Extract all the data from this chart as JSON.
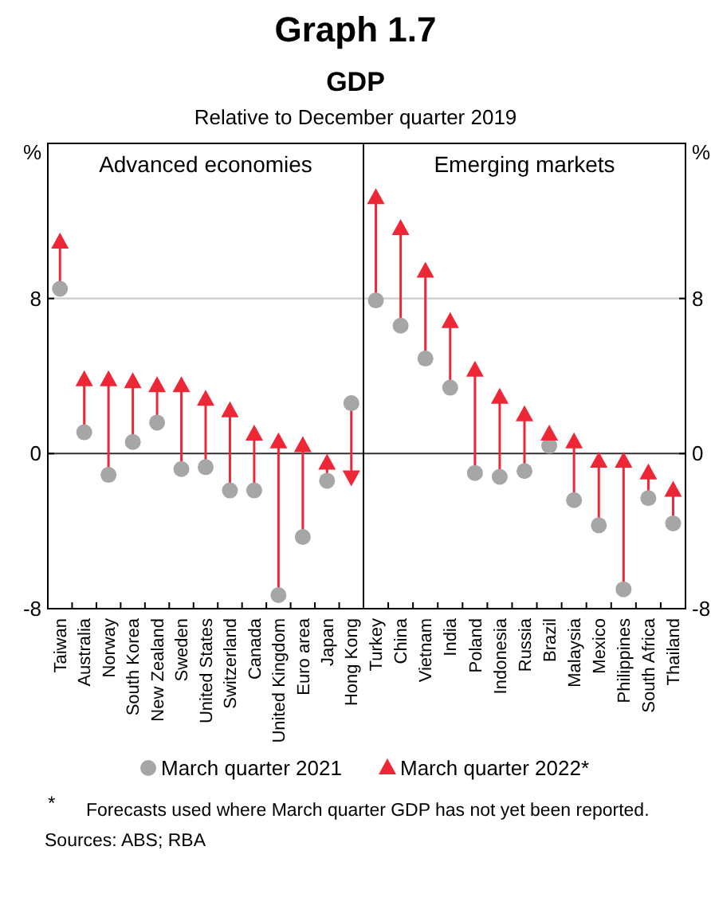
{
  "chart_data": [
    {
      "type": "scatter",
      "title": "Advanced economies",
      "ylabel": "%",
      "categories": [
        "Taiwan",
        "Australia",
        "Norway",
        "South Korea",
        "New Zealand",
        "Sweden",
        "United States",
        "Switzerland",
        "Canada",
        "United Kingdom",
        "Euro area",
        "Japan",
        "Hong Kong"
      ],
      "series": [
        {
          "name": "March quarter 2021",
          "color": "#a6a6a6",
          "marker": "circle",
          "values": [
            8.5,
            1.1,
            -1.1,
            0.6,
            1.6,
            -0.8,
            -0.7,
            -1.9,
            -1.9,
            -7.3,
            -4.3,
            -1.4,
            2.6
          ]
        },
        {
          "name": "March quarter 2022*",
          "color": "#ee2737",
          "marker": "triangle",
          "values": [
            10.9,
            3.8,
            3.8,
            3.7,
            3.5,
            3.5,
            2.8,
            2.2,
            1.0,
            0.6,
            0.4,
            -0.5,
            -1.2
          ]
        }
      ],
      "ylim": [
        -8,
        16
      ],
      "yticks": [
        -8,
        0,
        8
      ],
      "ref_lines": [
        {
          "axis": "y",
          "value": 8,
          "color": "#cccccc"
        }
      ],
      "legend": "bottom",
      "annotations": [
        "Graph 1.7",
        "GDP",
        "Relative to December quarter 2019",
        "*",
        "Forecasts used where March quarter GDP has not yet been reported.",
        "Sources: ABS; RBA"
      ]
    },
    {
      "type": "scatter",
      "title": "Emerging markets",
      "ylabel": "%",
      "categories": [
        "Turkey",
        "China",
        "Vietnam",
        "India",
        "Poland",
        "Indonesia",
        "Russia",
        "Brazil",
        "Malaysia",
        "Mexico",
        "Philippines",
        "South Africa",
        "Thailand"
      ],
      "series": [
        {
          "color": "#a6a6a6",
          "marker": "circle",
          "values": [
            7.9,
            6.6,
            4.9,
            3.4,
            -1.0,
            -1.2,
            -0.9,
            0.4,
            -2.4,
            -3.7,
            -7.0,
            -2.3,
            -3.6
          ]
        },
        {
          "color": "#ee2737",
          "marker": "triangle",
          "values": [
            13.2,
            11.6,
            9.4,
            6.8,
            4.3,
            2.9,
            2.0,
            1.0,
            0.6,
            -0.4,
            -0.4,
            -1.0,
            -1.9
          ]
        }
      ],
      "ylim": [
        -8,
        16
      ],
      "yticks": [
        -8,
        0,
        8
      ],
      "ref_lines": [
        {
          "axis": "y",
          "value": 8,
          "color": "#cccccc"
        }
      ]
    }
  ]
}
